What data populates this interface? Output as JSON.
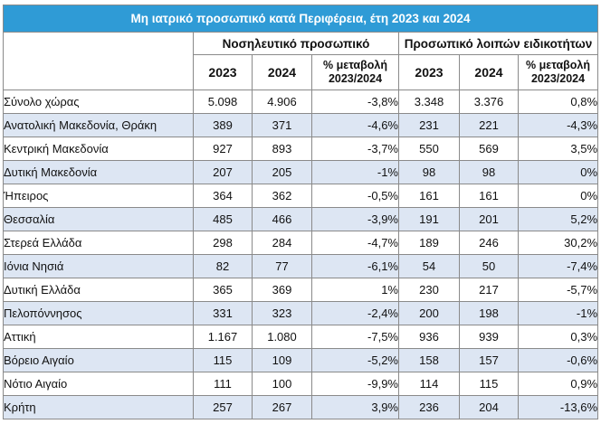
{
  "table": {
    "title": "Μη ιατρικό προσωπικό κατά Περιφέρεια, έτη 2023 και 2024",
    "group_nursing": "Νοσηλευτικό προσωπικό",
    "group_other": "Προσωπικό λοιπών ειδικοτήτων",
    "col_year_1": "2023",
    "col_year_2": "2024",
    "col_change_line1": "% μεταβολή",
    "col_change_line2": "2023/2024",
    "rows": [
      {
        "region": "Σύνολο χώρας",
        "n2023": "5.098",
        "n2024": "4.906",
        "nchg": "-3,8%",
        "o2023": "3.348",
        "o2024": "3.376",
        "ochg": "0,8%"
      },
      {
        "region": "Ανατολική Μακεδονία, Θράκη",
        "n2023": "389",
        "n2024": "371",
        "nchg": "-4,6%",
        "o2023": "231",
        "o2024": "221",
        "ochg": "-4,3%"
      },
      {
        "region": "Κεντρική Μακεδονία",
        "n2023": "927",
        "n2024": "893",
        "nchg": "-3,7%",
        "o2023": "550",
        "o2024": "569",
        "ochg": "3,5%"
      },
      {
        "region": "Δυτική Μακεδονία",
        "n2023": "207",
        "n2024": "205",
        "nchg": "-1%",
        "o2023": "98",
        "o2024": "98",
        "ochg": "0%"
      },
      {
        "region": "Ήπειρος",
        "n2023": "364",
        "n2024": "362",
        "nchg": "-0,5%",
        "o2023": "161",
        "o2024": "161",
        "ochg": "0%"
      },
      {
        "region": "Θεσσαλία",
        "n2023": "485",
        "n2024": "466",
        "nchg": "-3,9%",
        "o2023": "191",
        "o2024": "201",
        "ochg": "5,2%"
      },
      {
        "region": "Στερεά Ελλάδα",
        "n2023": "298",
        "n2024": "284",
        "nchg": "-4,7%",
        "o2023": "189",
        "o2024": "246",
        "ochg": "30,2%"
      },
      {
        "region": "Ιόνια Νησιά",
        "n2023": "82",
        "n2024": "77",
        "nchg": "-6,1%",
        "o2023": "54",
        "o2024": "50",
        "ochg": "-7,4%"
      },
      {
        "region": "Δυτική Ελλάδα",
        "n2023": "365",
        "n2024": "369",
        "nchg": "1%",
        "o2023": "230",
        "o2024": "217",
        "ochg": "-5,7%"
      },
      {
        "region": "Πελοπόννησος",
        "n2023": "331",
        "n2024": "323",
        "nchg": "-2,4%",
        "o2023": "200",
        "o2024": "198",
        "ochg": "-1%"
      },
      {
        "region": "Αττική",
        "n2023": "1.167",
        "n2024": "1.080",
        "nchg": "-7,5%",
        "o2023": "936",
        "o2024": "939",
        "ochg": "0,3%"
      },
      {
        "region": "Βόρειο Αιγαίο",
        "n2023": "115",
        "n2024": "109",
        "nchg": "-5,2%",
        "o2023": "158",
        "o2024": "157",
        "ochg": "-0,6%"
      },
      {
        "region": "Νότιο Αιγαίο",
        "n2023": "111",
        "n2024": "100",
        "nchg": "-9,9%",
        "o2023": "114",
        "o2024": "115",
        "ochg": "0,9%"
      },
      {
        "region": "Κρήτη",
        "n2023": "257",
        "n2024": "267",
        "nchg": "3,9%",
        "o2023": "236",
        "o2024": "204",
        "ochg": "-13,6%"
      }
    ]
  },
  "colors": {
    "title_bg": "#2f9bd6",
    "stripe": "#dde6f3",
    "border": "#8a8a8a"
  }
}
